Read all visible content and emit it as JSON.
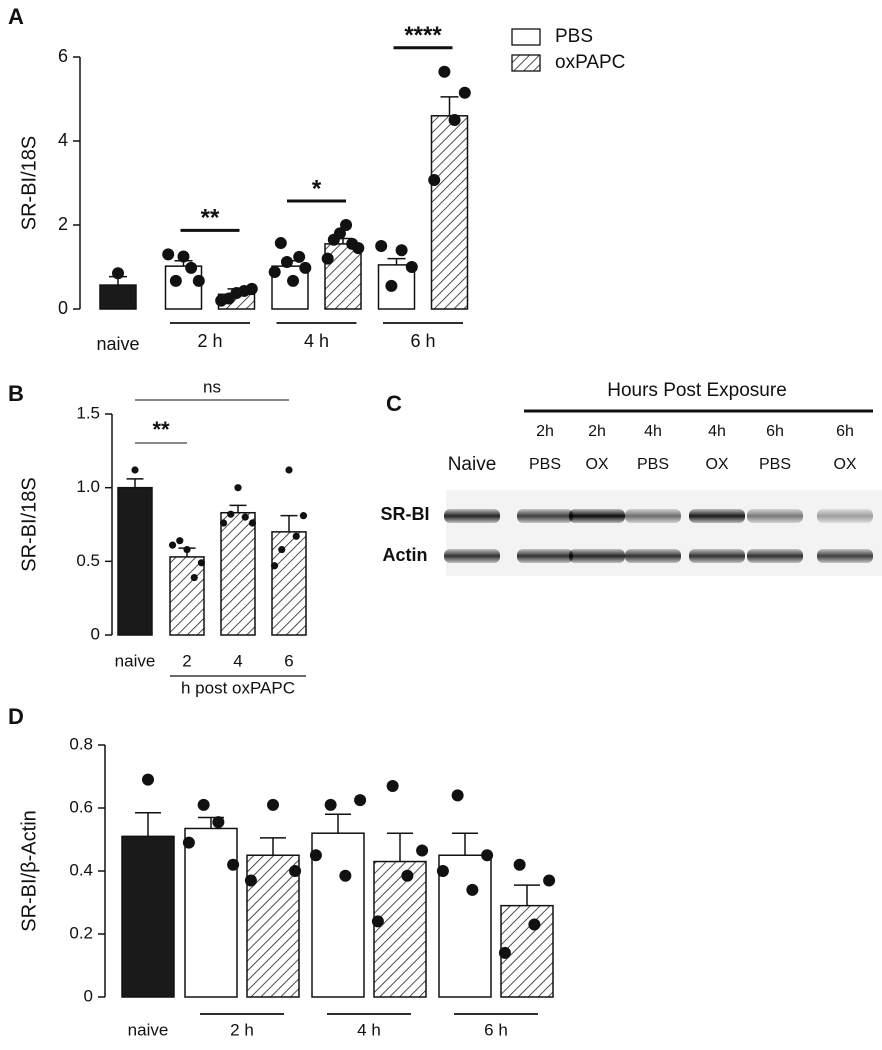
{
  "chart_data": [
    {
      "panel": "A",
      "type": "bar",
      "ylabel": "SR-BI/18S",
      "ylim": [
        0,
        6
      ],
      "yticks": [
        0,
        2,
        4,
        6
      ],
      "legend": "upper right",
      "categories": [
        "naive",
        "2 h",
        "4 h",
        "6 h"
      ],
      "significance": [
        null,
        "**",
        "*",
        "****"
      ],
      "series": [
        {
          "color": "#1a1a1a",
          "values": [
            0.57,
            null,
            null,
            null
          ],
          "errors": [
            0.2,
            null,
            null,
            null
          ],
          "points": [
            [
              0.85
            ],
            null,
            null,
            null
          ]
        },
        {
          "name": "PBS",
          "color": "#ffffff",
          "values": [
            null,
            1.02,
            1.02,
            1.05
          ],
          "errors": [
            null,
            0.13,
            0.13,
            0.15
          ],
          "points": [
            null,
            [
              1.3,
              0.67,
              1.25,
              0.98,
              0.67
            ],
            [
              0.88,
              1.57,
              1.12,
              0.67,
              1.24,
              0.98
            ],
            [
              1.5,
              0.55,
              1.4,
              1.0
            ]
          ]
        },
        {
          "name": "oxPAPC",
          "color": "#ffffff",
          "pattern": "hatch",
          "values": [
            null,
            0.35,
            1.55,
            4.6
          ],
          "errors": [
            null,
            0.13,
            0.13,
            0.45
          ],
          "points": [
            null,
            [
              0.2,
              0.25,
              0.38,
              0.43,
              0.48
            ],
            [
              1.2,
              1.65,
              1.8,
              2.0,
              1.55,
              1.45
            ],
            [
              3.07,
              5.65,
              4.5,
              5.15
            ]
          ]
        }
      ]
    },
    {
      "panel": "B",
      "type": "bar",
      "ylabel": "SR-BI/18S",
      "ylim": [
        0,
        1.5
      ],
      "yticks": [
        0,
        0.5,
        {
          "value": 1,
          "label": "1.0"
        },
        1.5
      ],
      "categories": [
        "naive",
        "2",
        "4",
        "6"
      ],
      "xgroup_label": "h post oxPAPC",
      "comparisons": [
        {
          "text": "**",
          "with": "2"
        },
        {
          "text": "ns",
          "with": "6"
        }
      ],
      "series": [
        {
          "color": "#1a1a1a",
          "values": [
            1.0,
            null,
            null,
            null
          ],
          "errors": [
            0.06,
            null,
            null,
            null
          ],
          "points": [
            [
              1.12
            ],
            null,
            null,
            null
          ]
        },
        {
          "color": "#ffffff",
          "pattern": "hatch",
          "values": [
            null,
            0.53,
            0.83,
            0.7
          ],
          "errors": [
            null,
            0.06,
            0.05,
            0.11
          ],
          "points": [
            null,
            [
              0.61,
              0.64,
              0.58,
              0.39,
              0.49
            ],
            [
              0.76,
              0.82,
              1.0,
              0.8,
              0.76
            ],
            [
              0.47,
              0.58,
              1.12,
              0.67,
              0.81
            ]
          ]
        }
      ]
    },
    {
      "panel": "D",
      "type": "bar",
      "ylabel": "SR-BI/β-Actin",
      "ylim": [
        0,
        0.8
      ],
      "yticks": [
        0,
        0.2,
        0.4,
        0.6,
        0.8
      ],
      "categories": [
        "naive",
        "2 h",
        "4 h",
        "6 h"
      ],
      "series": [
        {
          "color": "#1a1a1a",
          "values": [
            0.51,
            null,
            null,
            null
          ],
          "errors": [
            0.075,
            null,
            null,
            null
          ],
          "points": [
            [
              0.69
            ],
            null,
            null,
            null
          ]
        },
        {
          "color": "#ffffff",
          "values": [
            null,
            0.535,
            0.52,
            0.45
          ],
          "errors": [
            null,
            0.035,
            0.06,
            0.07
          ],
          "points": [
            null,
            [
              0.49,
              0.61,
              0.555,
              0.42
            ],
            [
              0.45,
              0.61,
              0.385,
              0.625
            ],
            [
              0.4,
              0.64,
              0.34,
              0.45
            ]
          ]
        },
        {
          "color": "#ffffff",
          "pattern": "hatch",
          "values": [
            null,
            0.45,
            0.43,
            0.29
          ],
          "errors": [
            null,
            0.055,
            0.09,
            0.065
          ],
          "points": [
            null,
            [
              0.37,
              0.61,
              0.4
            ],
            [
              0.24,
              0.67,
              0.385,
              0.465
            ],
            [
              0.14,
              0.42,
              0.23,
              0.37
            ]
          ]
        }
      ]
    }
  ],
  "blot": {
    "panel": "C",
    "header": "Hours Post Exposure",
    "lanes": [
      {
        "label": "Naive"
      },
      {
        "time": "2h",
        "treatment": "PBS"
      },
      {
        "time": "2h",
        "treatment": "OX"
      },
      {
        "time": "4h",
        "treatment": "PBS"
      },
      {
        "time": "4h",
        "treatment": "OX"
      },
      {
        "time": "6h",
        "treatment": "PBS"
      },
      {
        "time": "6h",
        "treatment": "OX"
      }
    ],
    "rows": [
      "SR-BI",
      "Actin"
    ]
  }
}
